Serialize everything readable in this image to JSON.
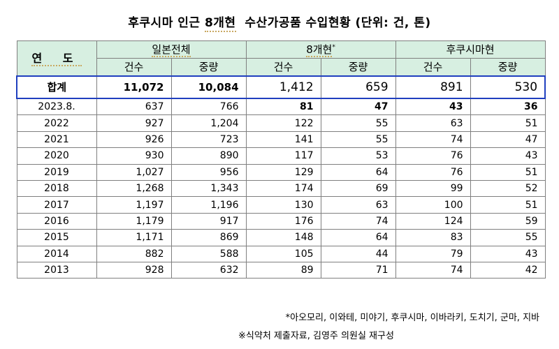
{
  "title": {
    "part1": "후쿠시마 인근 ",
    "part2": "8개현",
    "part3": "  수산가공품 수입현황 (단위: 건, 톤)"
  },
  "header": {
    "year": "연 도",
    "group_japan": "일본전체",
    "group_8pref": "8개현",
    "group_8pref_mark": "*",
    "group_fukushima": "후쿠시마현",
    "col_count": "건수",
    "col_weight": "중량"
  },
  "total": {
    "label": "합계",
    "japan_count": "11,072",
    "japan_weight": "10,084",
    "pref_count": "1,412",
    "pref_weight": "659",
    "fuku_count": "891",
    "fuku_weight": "530"
  },
  "rows": [
    {
      "year": "2023.8.",
      "japan_count": "637",
      "japan_weight": "766",
      "pref_count": "81",
      "pref_weight": "47",
      "fuku_count": "43",
      "fuku_weight": "36"
    },
    {
      "year": "2022",
      "japan_count": "927",
      "japan_weight": "1,204",
      "pref_count": "122",
      "pref_weight": "55",
      "fuku_count": "63",
      "fuku_weight": "51"
    },
    {
      "year": "2021",
      "japan_count": "926",
      "japan_weight": "723",
      "pref_count": "141",
      "pref_weight": "55",
      "fuku_count": "74",
      "fuku_weight": "47"
    },
    {
      "year": "2020",
      "japan_count": "930",
      "japan_weight": "890",
      "pref_count": "117",
      "pref_weight": "53",
      "fuku_count": "76",
      "fuku_weight": "43"
    },
    {
      "year": "2019",
      "japan_count": "1,027",
      "japan_weight": "956",
      "pref_count": "129",
      "pref_weight": "64",
      "fuku_count": "76",
      "fuku_weight": "51"
    },
    {
      "year": "2018",
      "japan_count": "1,268",
      "japan_weight": "1,343",
      "pref_count": "174",
      "pref_weight": "69",
      "fuku_count": "99",
      "fuku_weight": "52"
    },
    {
      "year": "2017",
      "japan_count": "1,197",
      "japan_weight": "1,196",
      "pref_count": "130",
      "pref_weight": "63",
      "fuku_count": "100",
      "fuku_weight": "51"
    },
    {
      "year": "2016",
      "japan_count": "1,179",
      "japan_weight": "917",
      "pref_count": "176",
      "pref_weight": "74",
      "fuku_count": "124",
      "fuku_weight": "59"
    },
    {
      "year": "2015",
      "japan_count": "1,171",
      "japan_weight": "869",
      "pref_count": "148",
      "pref_weight": "64",
      "fuku_count": "83",
      "fuku_weight": "55"
    },
    {
      "year": "2014",
      "japan_count": "882",
      "japan_weight": "588",
      "pref_count": "105",
      "pref_weight": "44",
      "fuku_count": "79",
      "fuku_weight": "43"
    },
    {
      "year": "2013",
      "japan_count": "928",
      "japan_weight": "632",
      "pref_count": "89",
      "pref_weight": "71",
      "fuku_count": "74",
      "fuku_weight": "42"
    }
  ],
  "notes": {
    "prefectures": "*아오모리, 이와테, 미야기, 후쿠시마, 이바라키, 도치기, 군마, 지바",
    "source": "※식약처 제출자료, 김영주 의원실 재구성"
  },
  "colors": {
    "header_bg": "#d7efe1",
    "total_border": "#1f3fbf",
    "grid": "#7f7f7f"
  }
}
